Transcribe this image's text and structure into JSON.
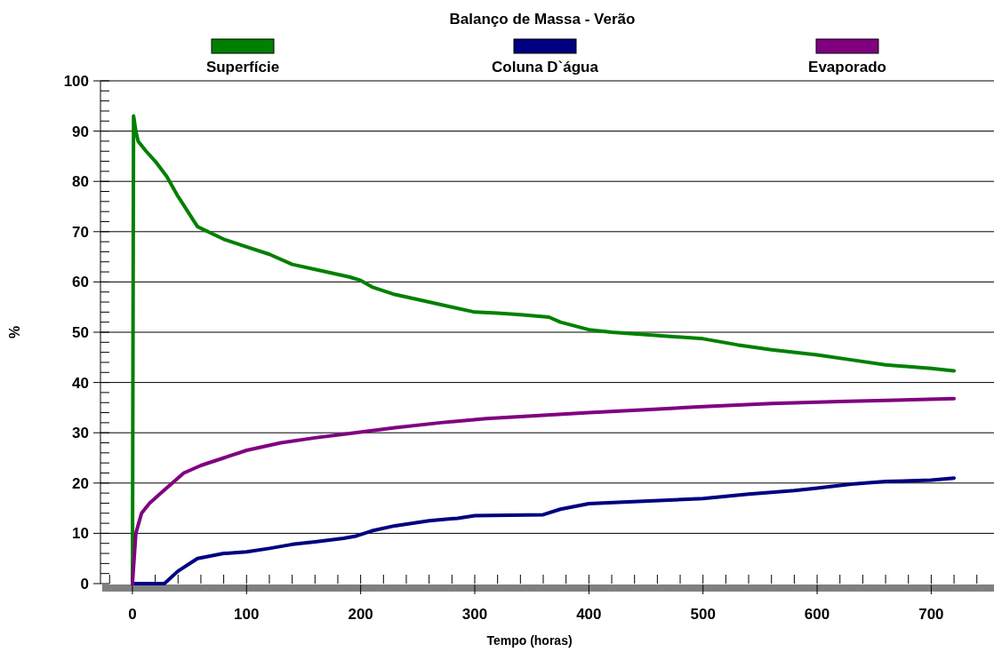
{
  "chart_data": {
    "type": "line",
    "title": "Balanço de Massa - Verão",
    "xlabel": "Tempo (horas)",
    "ylabel": "%",
    "xlim": [
      -28,
      755
    ],
    "ylim": [
      0,
      100
    ],
    "xticks": [
      0,
      100,
      200,
      300,
      400,
      500,
      600,
      700
    ],
    "yticks": [
      0,
      10,
      20,
      30,
      40,
      50,
      60,
      70,
      80,
      90,
      100
    ],
    "grid": "y",
    "legend": "top",
    "line_style": "solid",
    "series": [
      {
        "name": "Superfície",
        "color": "#008000",
        "x": [
          0,
          0.5,
          1,
          3,
          5,
          12,
          20,
          30,
          40,
          57,
          80,
          100,
          120,
          140,
          160,
          190,
          200,
          210,
          230,
          260,
          280,
          300,
          320,
          340,
          365,
          375,
          400,
          420,
          450,
          500,
          530,
          560,
          600,
          630,
          660,
          700,
          720
        ],
        "values": [
          0,
          47,
          93,
          90,
          88,
          86,
          84,
          81,
          77,
          71,
          68.5,
          67,
          65.5,
          63.5,
          62.5,
          61,
          60.3,
          59,
          57.5,
          56,
          55,
          54,
          53.8,
          53.5,
          53,
          52,
          50.5,
          50,
          49.5,
          48.7,
          47.5,
          46.5,
          45.5,
          44.5,
          43.5,
          42.8,
          42.3
        ]
      },
      {
        "name": "Coluna D`água",
        "color": "#000080",
        "x": [
          0,
          28,
          40,
          57,
          80,
          100,
          120,
          140,
          160,
          185,
          195,
          210,
          230,
          260,
          285,
          300,
          360,
          375,
          400,
          430,
          470,
          500,
          540,
          580,
          600,
          630,
          660,
          700,
          720
        ],
        "values": [
          0,
          0,
          2.5,
          5,
          6,
          6.3,
          7,
          7.8,
          8.3,
          9,
          9.4,
          10.5,
          11.5,
          12.5,
          13,
          13.5,
          13.7,
          14.8,
          15.9,
          16.2,
          16.6,
          16.9,
          17.8,
          18.5,
          19,
          19.8,
          20.3,
          20.6,
          21
        ]
      },
      {
        "name": "Evaporado",
        "color": "#800080",
        "x": [
          0,
          3,
          8,
          15,
          25,
          35,
          45,
          60,
          80,
          100,
          130,
          160,
          195,
          230,
          270,
          310,
          360,
          400,
          450,
          500,
          560,
          620,
          720
        ],
        "values": [
          0,
          10,
          14,
          16,
          18,
          20,
          22,
          23.5,
          25,
          26.5,
          28,
          29,
          30,
          31,
          32,
          32.8,
          33.5,
          34,
          34.6,
          35.2,
          35.8,
          36.2,
          36.8
        ]
      }
    ]
  }
}
